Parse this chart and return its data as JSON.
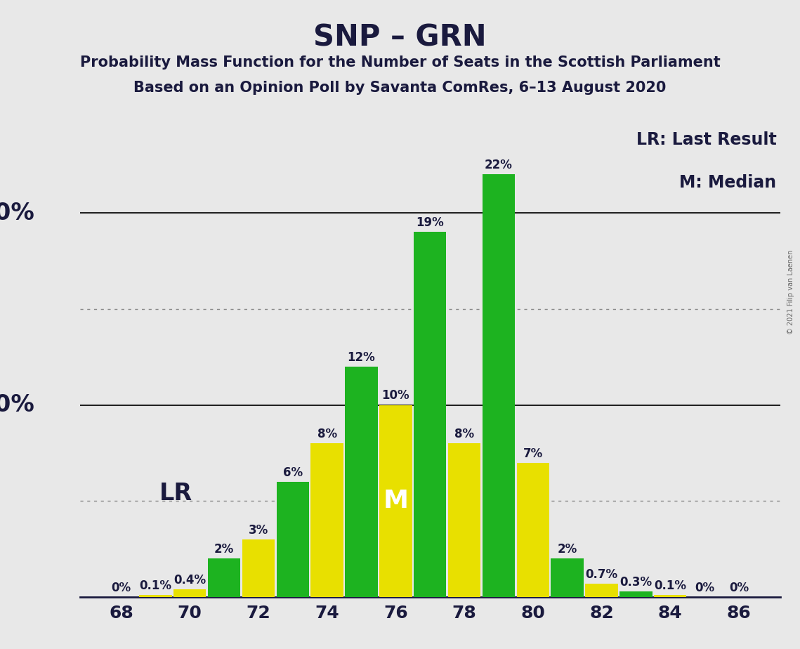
{
  "title": "SNP – GRN",
  "subtitle1": "Probability Mass Function for the Number of Seats in the Scottish Parliament",
  "subtitle2": "Based on an Opinion Poll by Savanta ComRes, 6–13 August 2020",
  "copyright": "© 2021 Filip van Laenen",
  "seats": [
    68,
    69,
    70,
    71,
    72,
    73,
    74,
    75,
    76,
    77,
    78,
    79,
    80,
    81,
    82,
    83,
    84,
    85,
    86
  ],
  "values": [
    0.0,
    0.1,
    0.4,
    2.0,
    3.0,
    6.0,
    8.0,
    12.0,
    10.0,
    19.0,
    8.0,
    22.0,
    7.0,
    2.0,
    0.7,
    0.3,
    0.1,
    0.0,
    0.0
  ],
  "labels": [
    "0%",
    "0.1%",
    "0.4%",
    "2%",
    "3%",
    "6%",
    "8%",
    "12%",
    "10%",
    "19%",
    "8%",
    "22%",
    "7%",
    "2%",
    "0.7%",
    "0.3%",
    "0.1%",
    "0%",
    "0%"
  ],
  "colors": [
    "#1db320",
    "#e8e000",
    "#e8e000",
    "#1db320",
    "#e8e000",
    "#1db320",
    "#e8e000",
    "#1db320",
    "#e8e000",
    "#1db320",
    "#e8e000",
    "#1db320",
    "#e8e000",
    "#1db320",
    "#e8e000",
    "#1db320",
    "#e8e000",
    "#1db320",
    "#1db320"
  ],
  "lr_seat": 71,
  "median_seat": 76,
  "background_color": "#e8e8e8",
  "bar_width": 0.95,
  "green_color": "#1db320",
  "yellow_color": "#e8e000",
  "text_color": "#1a1a3e",
  "dotted_line_color": "#888888",
  "solid_line_color": "#222222",
  "title_fontsize": 30,
  "subtitle_fontsize": 15,
  "axis_tick_fontsize": 18,
  "legend_fontsize": 17,
  "lr_label_fontsize": 24,
  "median_label_fontsize": 26,
  "bar_label_fontsize": 12,
  "ylabel_fontsize": 24
}
